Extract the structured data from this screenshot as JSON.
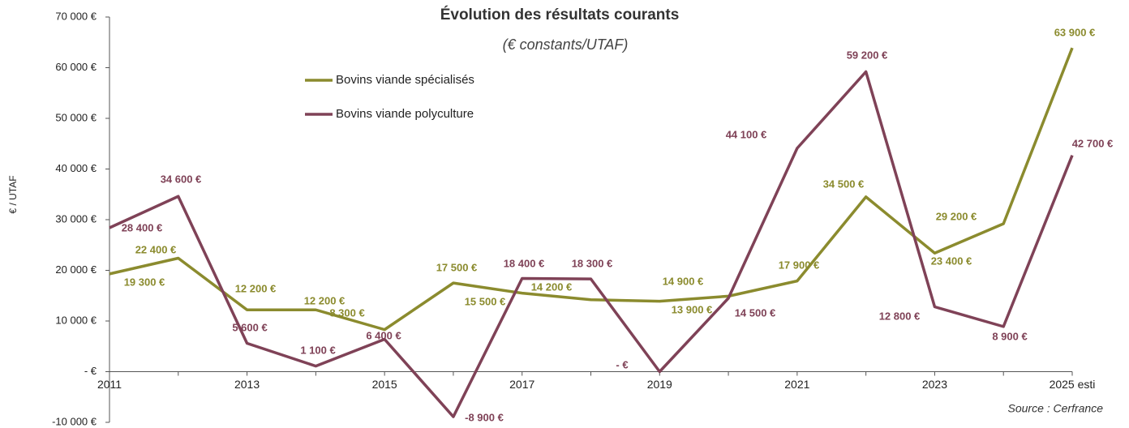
{
  "chart_data": {
    "type": "line",
    "title": "Évolution des résultats courants",
    "subtitle": "(€ constants/UTAF)",
    "y_label": "€ / UTAF",
    "source": "Source : Cerfrance",
    "categories": [
      "2011",
      null,
      "2013",
      null,
      "2015",
      null,
      "2017",
      null,
      "2019",
      null,
      "2021",
      null,
      "2023",
      null,
      "2025 esti"
    ],
    "series": [
      {
        "name": "Bovins viande spécialisés",
        "color": "#8b8b2e",
        "values": [
          19300,
          22400,
          12200,
          12200,
          8300,
          17500,
          15500,
          14200,
          13900,
          14900,
          17900,
          34500,
          23400,
          29200,
          63900
        ],
        "value_labels": [
          "19 300 €",
          "22 400 €",
          "12 200 €",
          "12 200 €",
          "8 300 €",
          "17 500 €",
          "15 500 €",
          "14 200 €",
          "13 900 €",
          "14 900 €",
          "17 900 €",
          "34 500 €",
          "23 400 €",
          "29 200 €",
          "63 900 €"
        ]
      },
      {
        "name": "Bovins viande polyculture",
        "color": "#7f4257",
        "values": [
          28400,
          34600,
          5600,
          1100,
          6400,
          -8900,
          18400,
          18300,
          0,
          14500,
          44100,
          59200,
          12800,
          8900,
          42700
        ],
        "value_labels": [
          "28 400 €",
          "34 600 €",
          "5 600 €",
          "1 100 €",
          "6 400 €",
          "-8 900 €",
          "18 400 €",
          "18 300 €",
          "-  €",
          "14 500 €",
          "44 100 €",
          "59 200 €",
          "12 800 €",
          "8 900 €",
          "42 700 €"
        ]
      }
    ],
    "ylim": [
      -10000,
      70000
    ],
    "yticks": [
      {
        "value": -10000,
        "label": "-10 000 €"
      },
      {
        "value": 0,
        "label": "- €"
      },
      {
        "value": 10000,
        "label": "10 000 €"
      },
      {
        "value": 20000,
        "label": "20 000 €"
      },
      {
        "value": 30000,
        "label": "30 000 €"
      },
      {
        "value": 40000,
        "label": "40 000 €"
      },
      {
        "value": 50000,
        "label": "50 000 €"
      },
      {
        "value": 60000,
        "label": "60 000 €"
      },
      {
        "value": 70000,
        "label": "70 000 €"
      }
    ],
    "grid": false
  }
}
